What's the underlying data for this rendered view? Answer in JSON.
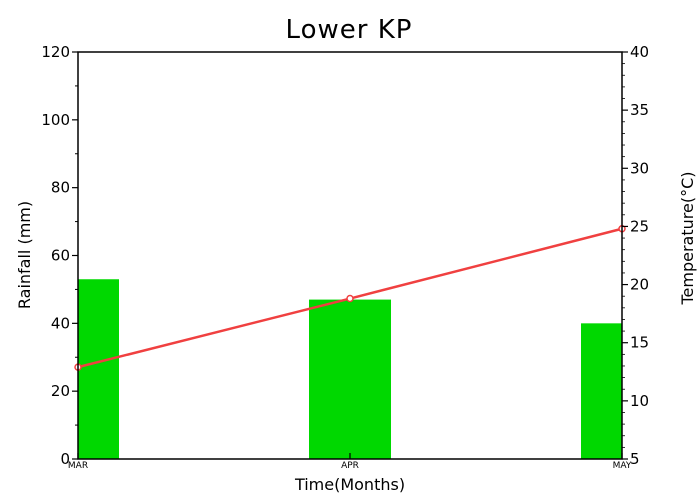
{
  "chart_data": {
    "type": "bar",
    "title": "Lower KP",
    "xlabel": "Time(Months)",
    "ylabel": "Rainfall (mm)",
    "y2label": "Temperature(°C)",
    "categories": [
      "MAR",
      "APR",
      "MAY"
    ],
    "ylim": [
      0,
      120
    ],
    "yticks": [
      0,
      20,
      40,
      60,
      80,
      100,
      120
    ],
    "y2lim": [
      5,
      40
    ],
    "y2ticks": [
      5,
      10,
      15,
      20,
      25,
      30,
      35,
      40
    ],
    "series": [
      {
        "type": "bar",
        "axis": "left",
        "values": [
          53,
          47,
          40
        ],
        "color": "#00d800"
      },
      {
        "type": "line",
        "axis": "right",
        "values": [
          12.9,
          18.8,
          24.8
        ],
        "color": "#f04040"
      }
    ],
    "grid": false,
    "legend": "none"
  }
}
